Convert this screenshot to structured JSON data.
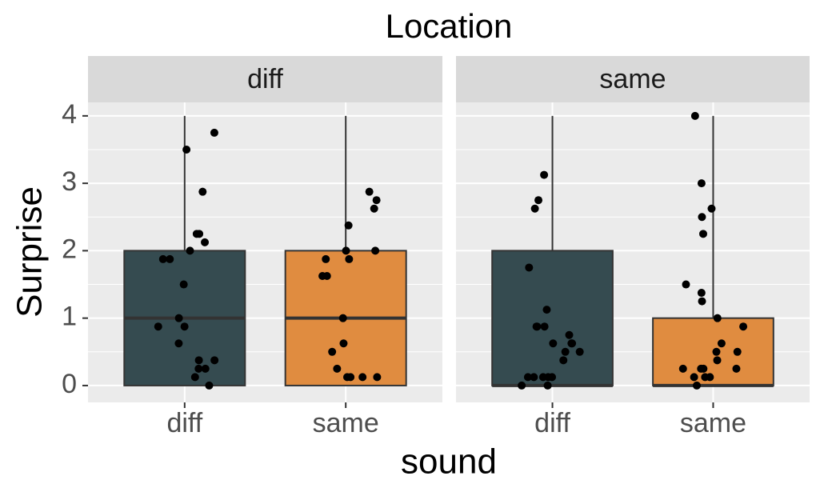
{
  "chart_data": {
    "type": "box",
    "title": "Location",
    "x_label": "sound",
    "y_label": "Surprise",
    "ylim": [
      -0.25,
      4.2
    ],
    "yticks": [
      0,
      1,
      2,
      3,
      4
    ],
    "grid": true,
    "categories": [
      "diff",
      "same"
    ],
    "colors": [
      "#354b50",
      "#e08c40"
    ],
    "facets": [
      {
        "name": "diff",
        "boxes": [
          {
            "min": 0,
            "q1": 0,
            "median": 1,
            "q3": 2,
            "max": 4,
            "points": [
              3.75,
              3.5,
              2.875,
              2.25,
              2.25,
              2.125,
              2,
              1.875,
              1.875,
              1.5,
              1,
              0.875,
              0.875,
              0.625,
              0.375,
              0.375,
              0.25,
              0.25,
              0.125,
              0
            ]
          },
          {
            "min": 0,
            "q1": 0,
            "median": 1,
            "q3": 2,
            "max": 4,
            "points": [
              2.875,
              2.75,
              2.625,
              2.375,
              2,
              2,
              1.875,
              1.875,
              1.625,
              1.625,
              1,
              0.625,
              0.5,
              0.25,
              0.125,
              0.125,
              0.125,
              0.125
            ]
          }
        ]
      },
      {
        "name": "same",
        "boxes": [
          {
            "min": 0,
            "q1": 0,
            "median": 0,
            "q3": 2,
            "max": 4,
            "points": [
              3.125,
              2.75,
              2.625,
              1.75,
              1.125,
              0.875,
              0.875,
              0.875,
              0.75,
              0.625,
              0.625,
              0.625,
              0.5,
              0.5,
              0.375,
              0.125,
              0.125,
              0.125,
              0.125,
              0.125,
              0,
              0
            ]
          },
          {
            "min": 0,
            "q1": 0,
            "median": 0,
            "q3": 1,
            "max": 4,
            "points": [
              4,
              3,
              2.625,
              2.5,
              2.25,
              1.5,
              1.375,
              1.25,
              1,
              0.875,
              0.625,
              0.5,
              0.5,
              0.375,
              0.25,
              0.25,
              0.25,
              0.25,
              0.125,
              0.125,
              0.125,
              0
            ]
          }
        ]
      }
    ]
  }
}
